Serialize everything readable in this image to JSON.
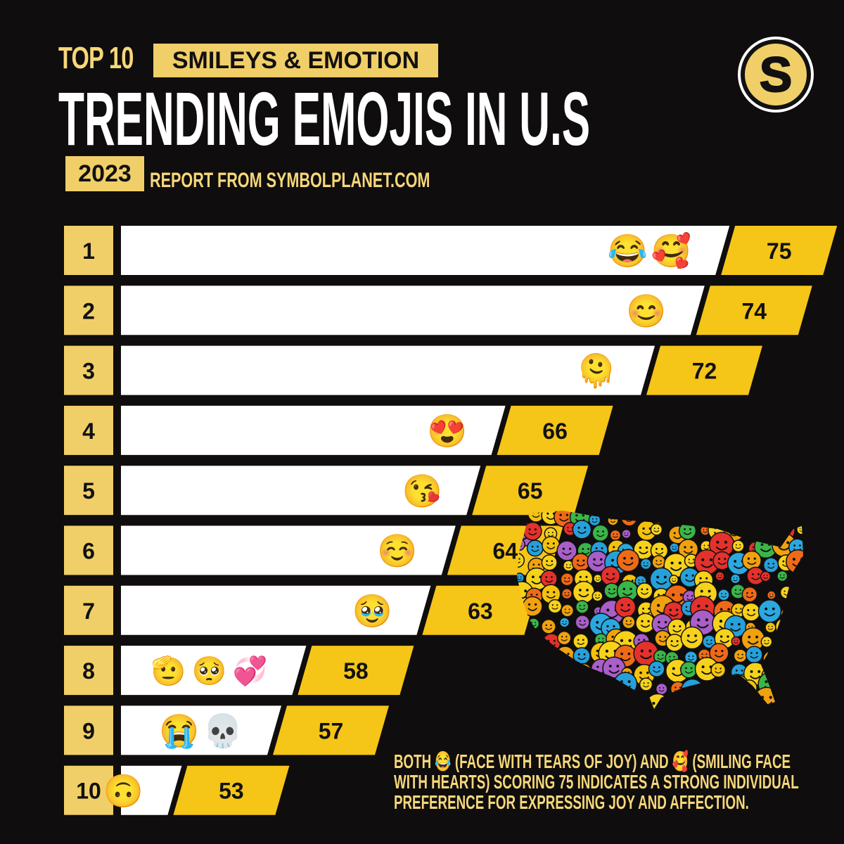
{
  "header": {
    "top_label": "TOP 10",
    "category": "SMILEYS & EMOTION",
    "title": "TRENDING EMOJIS IN U.S",
    "year": "2023",
    "source": "REPORT FROM SYMBOLPLANET.COM",
    "logo_letter": "S"
  },
  "colors": {
    "background": "#0f0d0d",
    "accent": "#f1cf68",
    "value_bar": "#f5c518",
    "bar": "#ffffff",
    "note_text": "#f6d779"
  },
  "chart_data": {
    "type": "bar",
    "orientation": "horizontal",
    "categories": [
      "1",
      "2",
      "3",
      "4",
      "5",
      "6",
      "7",
      "8",
      "9",
      "10"
    ],
    "emojis": [
      [
        "😂",
        "🥰"
      ],
      [
        "😊"
      ],
      [
        "🫠"
      ],
      [
        "😍"
      ],
      [
        "😘"
      ],
      [
        "☺️"
      ],
      [
        "🥹"
      ],
      [
        "🫡",
        "🥺",
        "💞"
      ],
      [
        "😭",
        "💀"
      ],
      [
        "🙃"
      ]
    ],
    "values": [
      75,
      74,
      72,
      66,
      65,
      64,
      63,
      58,
      57,
      53
    ],
    "title": "TRENDING EMOJIS IN U.S",
    "xlabel": "",
    "ylabel": "",
    "xlim": [
      0,
      75
    ],
    "grid": false,
    "legend": "none"
  },
  "map": {
    "description_icon": "us-map-of-smiley-faces"
  },
  "note": {
    "line1": "BOTH 😂 (FACE WITH TEARS OF JOY) AND 🥰 (SMILING FACE",
    "line2": "WITH HEARTS) SCORING 75 INDICATES A STRONG INDIVIDUAL",
    "line3": "PREFERENCE FOR EXPRESSING JOY AND AFFECTION."
  }
}
